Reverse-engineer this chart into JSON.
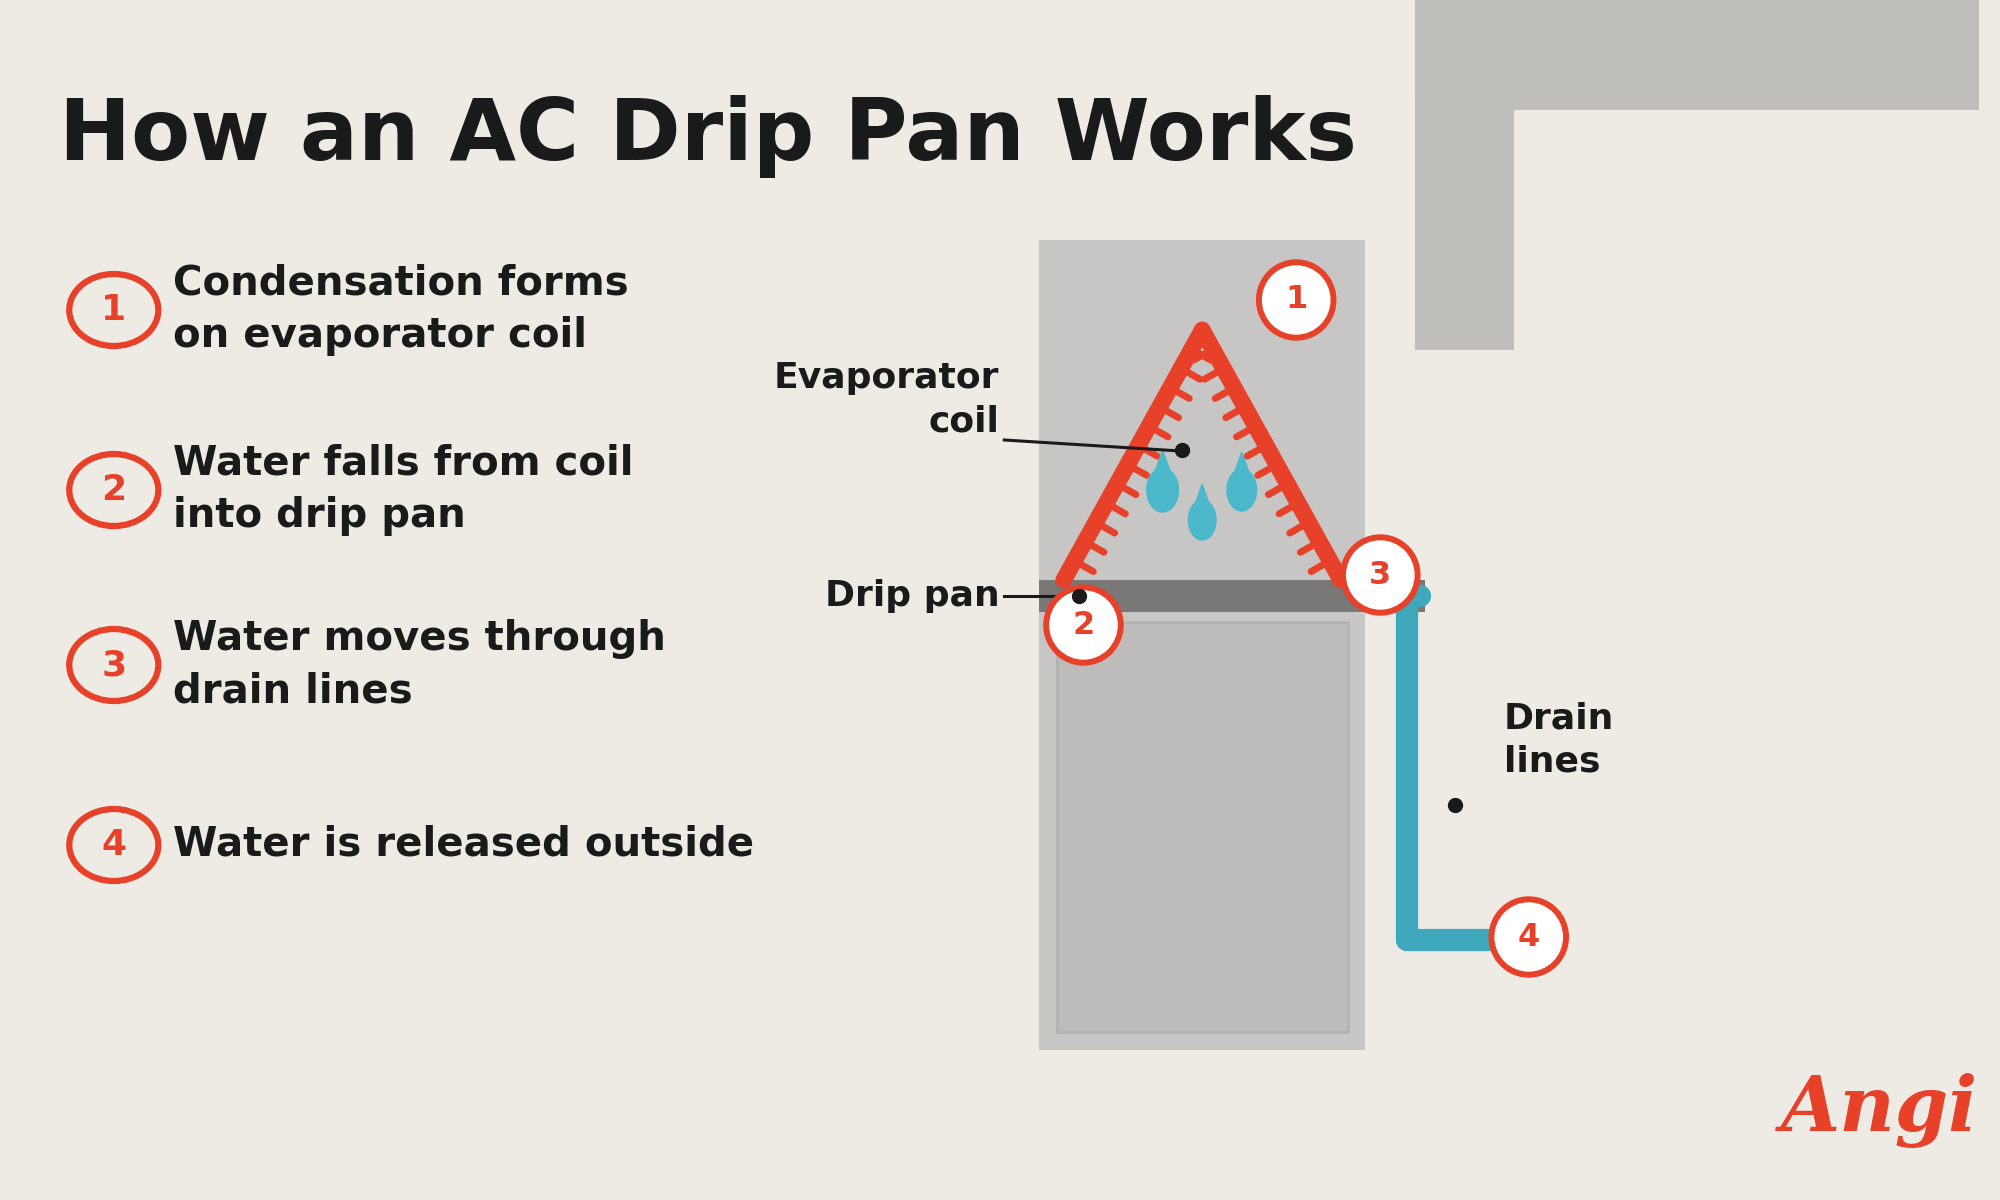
{
  "title": "How an AC Drip Pan Works",
  "background_color": "#eeebe4",
  "title_color": "#1a1a1a",
  "title_fontsize": 62,
  "red_color": "#e8412a",
  "dark_color": "#1a1a1a",
  "teal_color": "#3fa8bc",
  "gray_light": "#c8c6c4",
  "gray_medium": "#b5b3b0",
  "gray_dark": "#7a7876",
  "gray_inner": "#bebcba",
  "gray_duct": "#c0bebb",
  "steps": [
    {
      "num": "1",
      "text": "Condensation forms\non evaporator coil"
    },
    {
      "num": "2",
      "text": "Water falls from coil\ninto drip pan"
    },
    {
      "num": "3",
      "text": "Water moves through\ndrain lines"
    },
    {
      "num": "4",
      "text": "Water is released outside"
    }
  ],
  "angi_color": "#e8412a"
}
